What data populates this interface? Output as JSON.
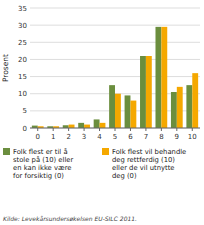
{
  "chart_data": {
    "type": "bar",
    "categories": [
      0,
      1,
      2,
      3,
      4,
      5,
      6,
      7,
      8,
      9,
      10
    ],
    "series": [
      {
        "name": "Folk flest er til å\nstole på (10) eller\nen kan ikke være\nfor forsiktig (0)",
        "color": "#6b8e3e",
        "values": [
          0.7,
          0.5,
          0.8,
          1.5,
          2.5,
          12.5,
          9.5,
          21.0,
          29.5,
          10.5,
          12.5
        ]
      },
      {
        "name": "Folk flest vil behandle\ndeg rettferdig (10)\neller de vil utnytte\ndeg (0)",
        "color": "#f5a800",
        "values": [
          0.5,
          0.5,
          1.0,
          1.0,
          1.5,
          10.0,
          8.0,
          21.0,
          29.5,
          12.0,
          16.0
        ]
      }
    ],
    "y_label": "Prosent",
    "ylim": [
      0,
      35
    ],
    "yticks": [
      0,
      5,
      10,
      15,
      20,
      25,
      30,
      35
    ],
    "grid": true,
    "legend": "bottom",
    "source": "Kilde: Levekårsundersøkelsen EU-SILC 2011."
  }
}
